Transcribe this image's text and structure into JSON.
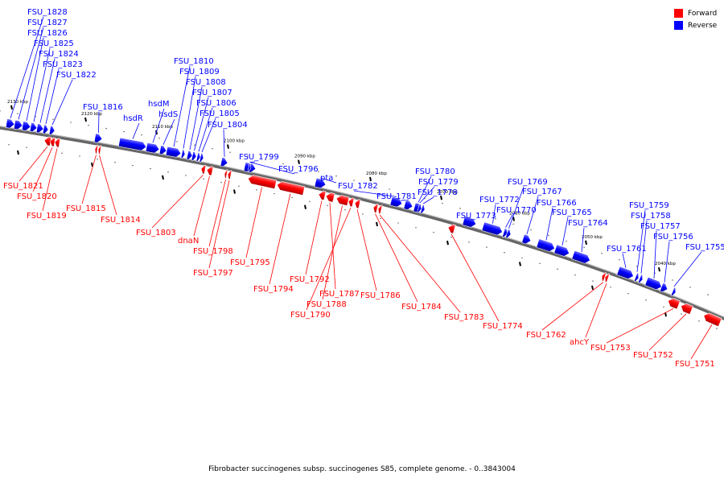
{
  "colors": {
    "forward": "#ff0000",
    "reverse": "#0000ff",
    "backbone": "#777777"
  },
  "legend": {
    "forward": "Forward",
    "reverse": "Reverse"
  },
  "caption": "Fibrobacter succinogenes subsp. succinogenes S85, complete genome. - 0..3843004",
  "ticks": [
    {
      "label": "2130 kbp"
    },
    {
      "label": "2120 kbp"
    },
    {
      "label": "2110 kbp"
    },
    {
      "label": "2100 kbp"
    },
    {
      "label": "2090 kbp"
    },
    {
      "label": "2080 kbp"
    },
    {
      "label": "2070 kbp"
    },
    {
      "label": "2060 kbp"
    },
    {
      "label": "2050 kbp"
    },
    {
      "label": "2040 kbp"
    }
  ],
  "genes": [
    {
      "label": "FSU_1828",
      "strand": "reverse"
    },
    {
      "label": "FSU_1827",
      "strand": "reverse"
    },
    {
      "label": "FSU_1826",
      "strand": "reverse"
    },
    {
      "label": "FSU_1825",
      "strand": "reverse"
    },
    {
      "label": "FSU_1824",
      "strand": "reverse"
    },
    {
      "label": "FSU_1823",
      "strand": "reverse"
    },
    {
      "label": "FSU_1822",
      "strand": "reverse"
    },
    {
      "label": "FSU_1816",
      "strand": "reverse"
    },
    {
      "label": "hsdR",
      "strand": "reverse"
    },
    {
      "label": "hsdM",
      "strand": "reverse"
    },
    {
      "label": "hsdS",
      "strand": "reverse"
    },
    {
      "label": "FSU_1810",
      "strand": "reverse"
    },
    {
      "label": "FSU_1809",
      "strand": "reverse"
    },
    {
      "label": "FSU_1808",
      "strand": "reverse"
    },
    {
      "label": "FSU_1807",
      "strand": "reverse"
    },
    {
      "label": "FSU_1806",
      "strand": "reverse"
    },
    {
      "label": "FSU_1805",
      "strand": "reverse"
    },
    {
      "label": "FSU_1804",
      "strand": "reverse"
    },
    {
      "label": "FSU_1799",
      "strand": "reverse"
    },
    {
      "label": "FSU_1796",
      "strand": "reverse"
    },
    {
      "label": "pta",
      "strand": "reverse"
    },
    {
      "label": "FSU_1782",
      "strand": "reverse"
    },
    {
      "label": "FSU_1781",
      "strand": "reverse"
    },
    {
      "label": "FSU_1780",
      "strand": "reverse"
    },
    {
      "label": "FSU_1779",
      "strand": "reverse"
    },
    {
      "label": "FSU_1778",
      "strand": "reverse"
    },
    {
      "label": "FSU_1773",
      "strand": "reverse"
    },
    {
      "label": "FSU_1772",
      "strand": "reverse"
    },
    {
      "label": "FSU_1770",
      "strand": "reverse"
    },
    {
      "label": "FSU_1769",
      "strand": "reverse"
    },
    {
      "label": "FSU_1767",
      "strand": "reverse"
    },
    {
      "label": "FSU_1766",
      "strand": "reverse"
    },
    {
      "label": "FSU_1765",
      "strand": "reverse"
    },
    {
      "label": "FSU_1764",
      "strand": "reverse"
    },
    {
      "label": "FSU_1761",
      "strand": "reverse"
    },
    {
      "label": "FSU_1759",
      "strand": "reverse"
    },
    {
      "label": "FSU_1758",
      "strand": "reverse"
    },
    {
      "label": "FSU_1757",
      "strand": "reverse"
    },
    {
      "label": "FSU_1756",
      "strand": "reverse"
    },
    {
      "label": "FSU_1755",
      "strand": "reverse"
    },
    {
      "label": "FSU_1821",
      "strand": "forward"
    },
    {
      "label": "FSU_1820",
      "strand": "forward"
    },
    {
      "label": "FSU_1819",
      "strand": "forward"
    },
    {
      "label": "FSU_1815",
      "strand": "forward"
    },
    {
      "label": "FSU_1814",
      "strand": "forward"
    },
    {
      "label": "FSU_1803",
      "strand": "forward"
    },
    {
      "label": "dnaN",
      "strand": "forward"
    },
    {
      "label": "FSU_1798",
      "strand": "forward"
    },
    {
      "label": "FSU_1797",
      "strand": "forward"
    },
    {
      "label": "FSU_1795",
      "strand": "forward"
    },
    {
      "label": "FSU_1794",
      "strand": "forward"
    },
    {
      "label": "FSU_1792",
      "strand": "forward"
    },
    {
      "label": "FSU_1787",
      "strand": "forward"
    },
    {
      "label": "FSU_1788",
      "strand": "forward"
    },
    {
      "label": "FSU_1790",
      "strand": "forward"
    },
    {
      "label": "FSU_1786",
      "strand": "forward"
    },
    {
      "label": "FSU_1784",
      "strand": "forward"
    },
    {
      "label": "FSU_1783",
      "strand": "forward"
    },
    {
      "label": "FSU_1774",
      "strand": "forward"
    },
    {
      "label": "FSU_1762",
      "strand": "forward"
    },
    {
      "label": "ahcY",
      "strand": "forward"
    },
    {
      "label": "FSU_1753",
      "strand": "forward"
    },
    {
      "label": "FSU_1752",
      "strand": "forward"
    },
    {
      "label": "FSU_1751",
      "strand": "forward"
    }
  ]
}
